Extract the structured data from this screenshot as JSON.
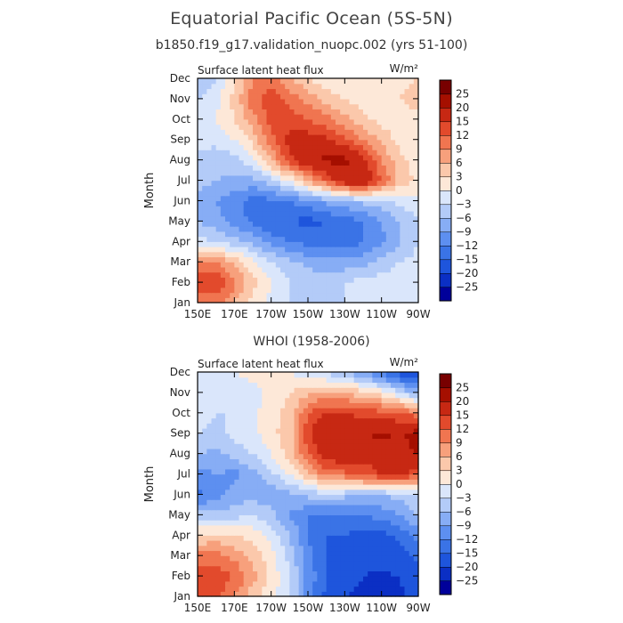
{
  "title": "Equatorial Pacific Ocean (5S-5N)",
  "subtitle": "b1850.f19_g17.validation_nuopc.002 (yrs 51-100)",
  "colorbar": {
    "levels": [
      -25,
      -20,
      -15,
      -12,
      -9,
      -6,
      -3,
      0,
      3,
      6,
      9,
      12,
      15,
      20,
      25
    ],
    "level_labels": [
      "-25",
      "-20",
      "-15",
      "-12",
      "-9",
      "-6",
      "-3",
      "0",
      "3",
      "6",
      "9",
      "12",
      "15",
      "20",
      "25"
    ],
    "colors": [
      "#00009a",
      "#0b2fc4",
      "#1e55dc",
      "#3a73e6",
      "#5d8ff0",
      "#87adf5",
      "#b3cbf8",
      "#dae6fb",
      "#fde8d8",
      "#fbc8ab",
      "#f7a07c",
      "#f07550",
      "#e24a2c",
      "#c72813",
      "#a50f00",
      "#780000"
    ]
  },
  "chart_data": [
    {
      "type": "heatmap",
      "panel_title": "",
      "left_label": "Surface latent heat flux",
      "units_label": "W/m²",
      "ylabel": "Month",
      "xlabel": "",
      "x_tick_labels": [
        "150E",
        "170E",
        "170W",
        "150W",
        "130W",
        "110W",
        "90W"
      ],
      "x_tick_lon_east": [
        150,
        170,
        190,
        210,
        230,
        250,
        270
      ],
      "xlim_lon_east": [
        150,
        270
      ],
      "y_tick_labels": [
        "Jan",
        "Feb",
        "Mar",
        "Apr",
        "May",
        "Jun",
        "Jul",
        "Aug",
        "Sep",
        "Oct",
        "Nov",
        "Dec"
      ],
      "y_tick_month": [
        1,
        2,
        3,
        4,
        5,
        6,
        7,
        8,
        9,
        10,
        11,
        12
      ],
      "ylim_month": [
        1,
        12
      ],
      "grid_lon_east": [
        150,
        160,
        170,
        180,
        190,
        200,
        210,
        220,
        230,
        240,
        250,
        260,
        270
      ],
      "grid_month": [
        1,
        2,
        3,
        4,
        5,
        6,
        7,
        8,
        9,
        10,
        11,
        12
      ],
      "values": [
        [
          8,
          10,
          6,
          2,
          -1,
          -3,
          -4,
          -4,
          -3,
          -2,
          -1,
          -1,
          -1
        ],
        [
          16,
          15,
          10,
          4,
          0,
          -3,
          -4,
          -4,
          -3,
          -2,
          -1,
          -1,
          -1
        ],
        [
          8,
          9,
          5,
          1,
          -3,
          -5,
          -7,
          -8,
          -8,
          -7,
          -5,
          -3,
          -2
        ],
        [
          -2,
          -3,
          -5,
          -7,
          -10,
          -12,
          -13,
          -14,
          -14,
          -12,
          -10,
          -6,
          -3
        ],
        [
          -6,
          -8,
          -10,
          -13,
          -15,
          -15,
          -16,
          -15,
          -14,
          -12,
          -9,
          -6,
          -3
        ],
        [
          -7,
          -9,
          -11,
          -13,
          -13,
          -12,
          -10,
          -8,
          -7,
          -5,
          -4,
          -2,
          -1
        ],
        [
          -5,
          -6,
          -7,
          -7,
          -4,
          0,
          6,
          12,
          18,
          20,
          12,
          5,
          2
        ],
        [
          -4,
          -5,
          -4,
          -1,
          6,
          14,
          19,
          21,
          21,
          16,
          9,
          4,
          1
        ],
        [
          -2,
          -2,
          0,
          4,
          11,
          16,
          17,
          16,
          13,
          9,
          5,
          2,
          0
        ],
        [
          -1,
          0,
          3,
          8,
          13,
          14,
          12,
          10,
          7,
          4,
          2,
          1,
          2
        ],
        [
          -3,
          -1,
          4,
          11,
          14,
          11,
          8,
          5,
          3,
          1,
          1,
          3,
          5
        ],
        [
          -6,
          -3,
          2,
          9,
          11,
          6,
          3,
          1,
          0,
          0,
          1,
          2,
          3
        ]
      ]
    },
    {
      "type": "heatmap",
      "panel_title": "WHOI (1958-2006)",
      "left_label": "Surface latent heat flux",
      "units_label": "W/m²",
      "ylabel": "Month",
      "xlabel": "",
      "x_tick_labels": [
        "150E",
        "170E",
        "170W",
        "150W",
        "130W",
        "110W",
        "90W"
      ],
      "x_tick_lon_east": [
        150,
        170,
        190,
        210,
        230,
        250,
        270
      ],
      "xlim_lon_east": [
        150,
        270
      ],
      "y_tick_labels": [
        "Jan",
        "Feb",
        "Mar",
        "Apr",
        "May",
        "Jun",
        "Jul",
        "Aug",
        "Sep",
        "Oct",
        "Nov",
        "Dec"
      ],
      "y_tick_month": [
        1,
        2,
        3,
        4,
        5,
        6,
        7,
        8,
        9,
        10,
        11,
        12
      ],
      "ylim_month": [
        1,
        12
      ],
      "grid_lon_east": [
        150,
        160,
        170,
        180,
        190,
        200,
        210,
        220,
        230,
        240,
        250,
        260,
        270
      ],
      "grid_month": [
        1,
        2,
        3,
        4,
        5,
        6,
        7,
        8,
        9,
        10,
        11,
        12
      ],
      "values": [
        [
          12,
          13,
          9,
          4,
          1,
          -3,
          -10,
          -16,
          -20,
          -22,
          -22,
          -21,
          -18
        ],
        [
          14,
          14,
          12,
          7,
          2,
          -2,
          -10,
          -15,
          -18,
          -20,
          -21,
          -20,
          -17
        ],
        [
          10,
          10,
          8,
          5,
          1,
          -4,
          -11,
          -15,
          -17,
          -18,
          -18,
          -17,
          -14
        ],
        [
          3,
          4,
          3,
          2,
          -1,
          -6,
          -12,
          -15,
          -15,
          -16,
          -16,
          -14,
          -11
        ],
        [
          -5,
          -5,
          -4,
          -3,
          -5,
          -9,
          -12,
          -13,
          -13,
          -12,
          -11,
          -9,
          -6
        ],
        [
          -13,
          -10,
          -8,
          -7,
          -8,
          -7,
          -5,
          -4,
          -5,
          -6,
          -6,
          -5,
          -3
        ],
        [
          -10,
          -9,
          -10,
          -7,
          -4,
          0,
          5,
          10,
          11,
          13,
          15,
          16,
          13
        ],
        [
          -6,
          -7,
          -5,
          -3,
          0,
          4,
          12,
          17,
          19,
          16,
          18,
          19,
          20
        ],
        [
          -3,
          -4,
          -2,
          -1,
          2,
          5,
          14,
          20,
          18,
          20,
          21,
          19,
          22
        ],
        [
          -2,
          -3,
          -3,
          -1,
          2,
          4,
          12,
          15,
          15,
          14,
          13,
          12,
          10
        ],
        [
          -2,
          -1,
          -2,
          -1,
          1,
          3,
          5,
          7,
          6,
          4,
          2,
          -3,
          -7
        ],
        [
          -1,
          0,
          0,
          1,
          0,
          0,
          -2,
          -4,
          -6,
          -9,
          -13,
          -17,
          -20
        ]
      ]
    }
  ]
}
